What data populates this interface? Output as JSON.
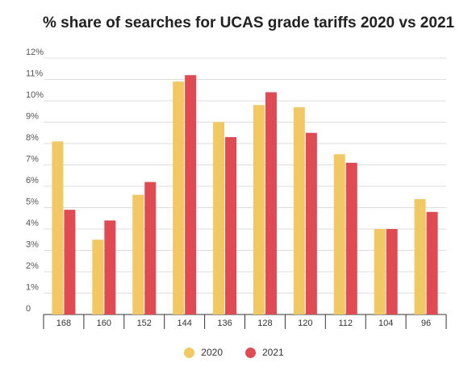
{
  "chart_data": {
    "type": "bar",
    "title": "% share of searches for UCAS grade tariffs 2020 vs 2021",
    "xlabel": "",
    "ylabel": "",
    "categories": [
      "168",
      "160",
      "152",
      "144",
      "136",
      "128",
      "120",
      "112",
      "104",
      "96"
    ],
    "series": [
      {
        "name": "2020",
        "color": "#f2c864",
        "values": [
          8.1,
          3.5,
          5.6,
          10.9,
          9.0,
          9.8,
          9.7,
          7.5,
          4.0,
          5.4
        ]
      },
      {
        "name": "2021",
        "color": "#e04a52",
        "values": [
          4.9,
          4.4,
          6.2,
          11.2,
          8.3,
          10.4,
          8.5,
          7.1,
          4.0,
          4.8
        ]
      }
    ],
    "ylim": [
      0,
      12
    ],
    "yticks": [
      "0",
      "1%",
      "2%",
      "3%",
      "4%",
      "5%",
      "6%",
      "7%",
      "8%",
      "9%",
      "10%",
      "11%",
      "12%"
    ],
    "grid": true,
    "legend_position": "bottom"
  }
}
